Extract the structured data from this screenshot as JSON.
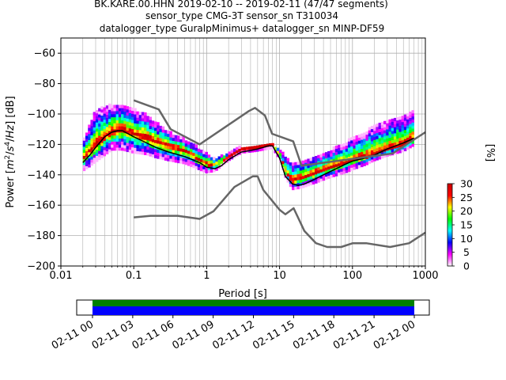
{
  "chart_data": {
    "type": "heatmap",
    "title_lines": [
      "BK.KARE.00.HHN   2019-02-10 -- 2019-02-11  (47/47 segments)",
      "sensor_type CMG-3T sensor_sn T310034",
      "datalogger_type GuralpMinimus+ datalogger_sn MINP-DF59"
    ],
    "xlabel": "Period [s]",
    "ylabel_parts": [
      "Power [",
      "m",
      "2",
      "/",
      "s",
      "4",
      "/",
      "Hz",
      "] [dB]"
    ],
    "x_scale": "log",
    "xlim": [
      0.01,
      1000
    ],
    "ylim": [
      -200,
      -50
    ],
    "grid": true,
    "x_ticks": [
      {
        "value": 0.01,
        "label": "0.01"
      },
      {
        "value": 0.1,
        "label": "0.1"
      },
      {
        "value": 1,
        "label": "1"
      },
      {
        "value": 10,
        "label": "10"
      },
      {
        "value": 100,
        "label": "100"
      },
      {
        "value": 1000,
        "label": "1000"
      }
    ],
    "y_ticks": [
      {
        "value": -60,
        "label": "−60"
      },
      {
        "value": -80,
        "label": "−80"
      },
      {
        "value": -100,
        "label": "−100"
      },
      {
        "value": -120,
        "label": "−120"
      },
      {
        "value": -140,
        "label": "−140"
      },
      {
        "value": -160,
        "label": "−160"
      },
      {
        "value": -180,
        "label": "−180"
      },
      {
        "value": -200,
        "label": "−200"
      }
    ],
    "colorbar": {
      "label": "[%]",
      "range": [
        0,
        30
      ],
      "ticks": [
        {
          "value": 0,
          "label": "0"
        },
        {
          "value": 5,
          "label": "5"
        },
        {
          "value": 10,
          "label": "10"
        },
        {
          "value": 15,
          "label": "15"
        },
        {
          "value": 20,
          "label": "20"
        },
        {
          "value": 25,
          "label": "25"
        },
        {
          "value": 30,
          "label": "30"
        }
      ],
      "colormap": [
        "#ffffff",
        "#ff00ff",
        "#0000ff",
        "#00ffff",
        "#00ff00",
        "#ffff00",
        "#ff0000",
        "#cc0000"
      ]
    },
    "psd_band": {
      "period": [
        0.02,
        0.03,
        0.05,
        0.07,
        0.1,
        0.15,
        0.2,
        0.3,
        0.5,
        0.8,
        1.0,
        1.3,
        2.0,
        3.0,
        4.5,
        6.0,
        8.0,
        10.0,
        12.0,
        15.0,
        20.0,
        30.0,
        50.0,
        80.0,
        100.0,
        150.0,
        200.0,
        300.0,
        500.0,
        700.0
      ],
      "upper": [
        -118,
        -98,
        -94,
        -94,
        -97,
        -101,
        -106,
        -112,
        -117,
        -123,
        -126,
        -130,
        -126,
        -122,
        -122,
        -120,
        -121,
        -123,
        -128,
        -133,
        -131,
        -128,
        -124,
        -119,
        -116,
        -112,
        -108,
        -104,
        -101,
        -98
      ],
      "median": [
        -130,
        -122,
        -112,
        -111,
        -114,
        -116,
        -119,
        -122,
        -125,
        -131,
        -134,
        -135,
        -129,
        -124,
        -123,
        -122,
        -121,
        -127,
        -139,
        -145,
        -143,
        -140,
        -136,
        -133,
        -131,
        -129,
        -127,
        -124,
        -121,
        -118
      ],
      "lower": [
        -138,
        -132,
        -124,
        -124,
        -126,
        -127,
        -129,
        -131,
        -133,
        -137,
        -139,
        -138,
        -131,
        -126,
        -125,
        -124,
        -123,
        -130,
        -142,
        -150,
        -149,
        -146,
        -142,
        -139,
        -137,
        -134,
        -131,
        -128,
        -125,
        -121
      ]
    },
    "series": [
      {
        "kind": "mean",
        "color": "#000000",
        "x": [
          0.02,
          0.025,
          0.03,
          0.04,
          0.05,
          0.06,
          0.07,
          0.1,
          0.15,
          0.2,
          0.3,
          0.5,
          0.8,
          1.0,
          1.3,
          1.6,
          2.0,
          3.0,
          4.0,
          5.0,
          6.0,
          7.0,
          8.0,
          10.0,
          12.0,
          15.0,
          18.0,
          22.0,
          30.0,
          40.0,
          60.0,
          80.0,
          100.0,
          150.0,
          200.0,
          300.0,
          500.0,
          700.0
        ],
        "y": [
          -132,
          -127,
          -122,
          -115,
          -112,
          -111,
          -111,
          -115,
          -119,
          -122,
          -125,
          -128,
          -132,
          -135,
          -136,
          -134,
          -130,
          -125,
          -124,
          -123,
          -122,
          -121,
          -121,
          -129,
          -141,
          -146,
          -147,
          -146,
          -143,
          -140,
          -136,
          -133,
          -131,
          -129,
          -127,
          -123,
          -119,
          -116
        ]
      },
      {
        "kind": "NHNM",
        "color": "#666666",
        "x": [
          0.1,
          0.22,
          0.32,
          0.8,
          3.8,
          4.6,
          6.3,
          7.9,
          15.4,
          20.0,
          354.8,
          1000.0
        ],
        "y": [
          -91,
          -97,
          -110,
          -120,
          -98,
          -96,
          -101,
          -113,
          -118,
          -134,
          -126,
          -112
        ]
      },
      {
        "kind": "NLNM",
        "color": "#666666",
        "x": [
          0.1,
          0.17,
          0.4,
          0.8,
          1.24,
          2.4,
          4.3,
          5.0,
          6.0,
          10.0,
          12.0,
          15.6,
          21.9,
          31.6,
          45.0,
          70.0,
          101.0,
          154.0,
          328.0,
          600.0,
          1000.0
        ],
        "y": [
          -168,
          -167,
          -167,
          -169,
          -164,
          -148,
          -141,
          -141,
          -150,
          -163,
          -166,
          -162,
          -177,
          -185,
          -187.5,
          -187.5,
          -185,
          -185,
          -187.5,
          -185,
          -178
        ]
      }
    ],
    "coverage": {
      "tick_labels": [
        "02-11 00",
        "02-11 03",
        "02-11 06",
        "02-11 09",
        "02-11 12",
        "02-11 15",
        "02-11 18",
        "02-11 21",
        "02-12 00"
      ],
      "data_color": "#008000",
      "psd_color": "#0000ff"
    }
  }
}
